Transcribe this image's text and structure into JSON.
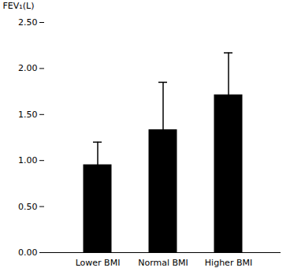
{
  "chart_data": {
    "type": "bar",
    "categories": [
      "Lower BMI",
      "Normal BMI",
      "Higher BMI"
    ],
    "values": [
      0.95,
      1.33,
      1.71
    ],
    "errors": [
      0.25,
      0.52,
      0.46
    ],
    "color": "#000000",
    "ylabel": "FEV₁(L)",
    "ylim": [
      0.0,
      2.5
    ],
    "yticks": [
      {
        "value": 0.0,
        "label": "0.00"
      },
      {
        "value": 0.5,
        "label": "0.50"
      },
      {
        "value": 1.0,
        "label": "1.00"
      },
      {
        "value": 1.5,
        "label": "1.50"
      },
      {
        "value": 2.0,
        "label": "2.00"
      },
      {
        "value": 2.5,
        "label": "2.50"
      }
    ],
    "grid": false
  }
}
